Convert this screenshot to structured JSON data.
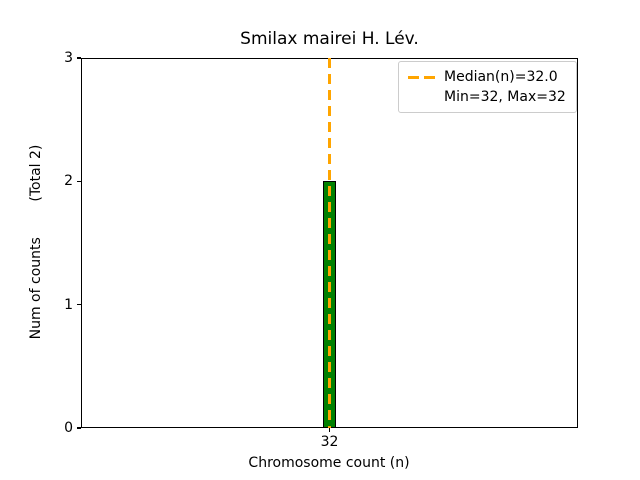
{
  "chart_data": {
    "type": "bar",
    "title": "Smilax mairei H. Lév.",
    "xlabel": "Chromosome count (n)",
    "ylabel": "Num of counts        (Total 2)",
    "categories": [
      32
    ],
    "values": [
      2
    ],
    "total_counts": 2,
    "median": 32.0,
    "min": 32,
    "max": 32,
    "ylim": [
      0,
      3
    ],
    "yticks": [
      0,
      1,
      2,
      3
    ],
    "xticks": [
      32
    ],
    "grid": false,
    "bar_color": "#008000",
    "bar_edge_color": "#000000",
    "median_line_color": "#FFA500",
    "legend": {
      "position": "upper right",
      "entries": [
        {
          "label": "Median(n)=32.0",
          "marker": "orange-dashed-line"
        },
        {
          "label": "Min=32, Max=32",
          "marker": "none"
        }
      ]
    }
  }
}
